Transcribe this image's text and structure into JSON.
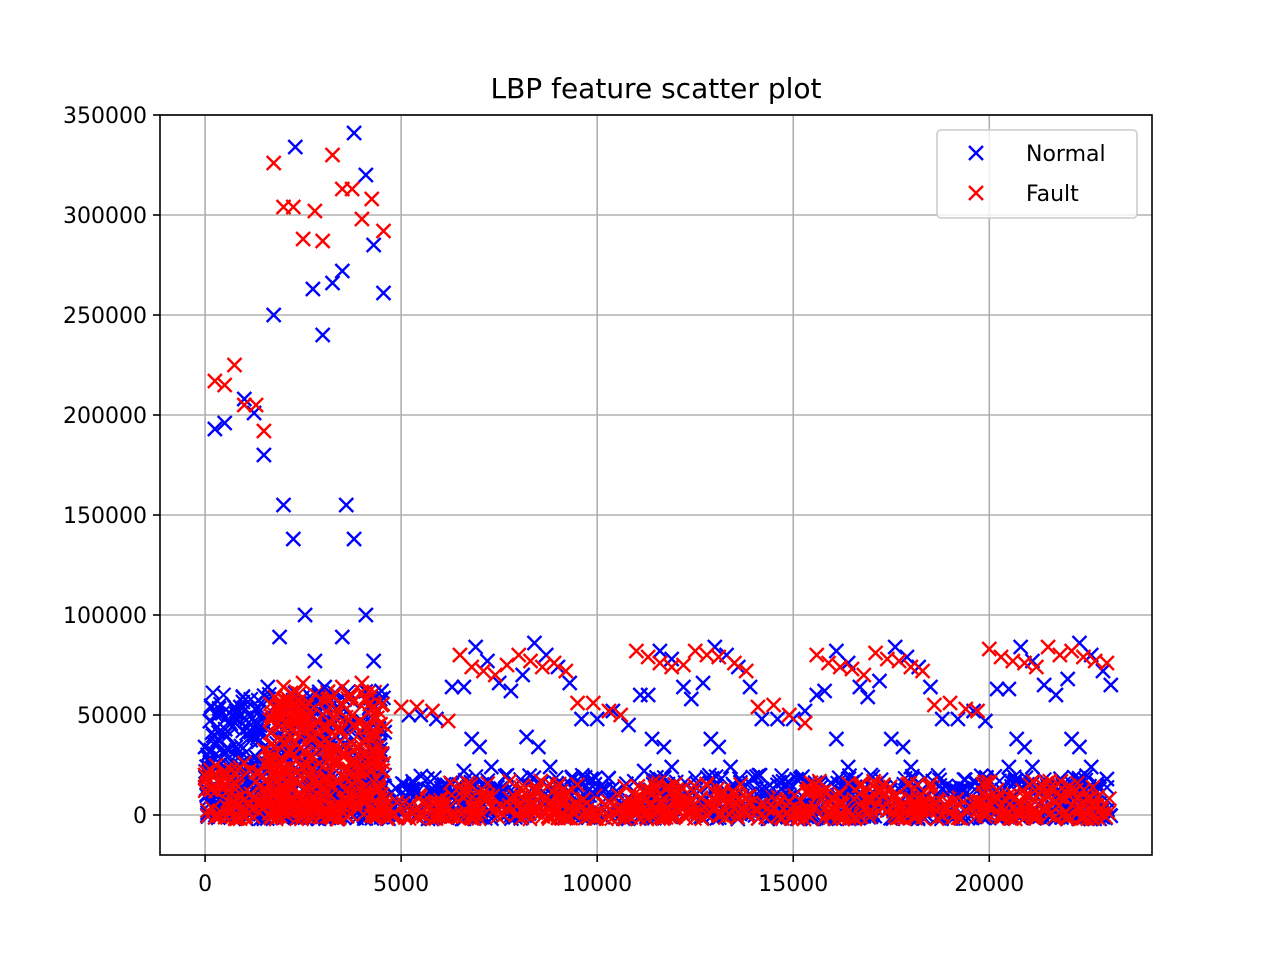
{
  "chart_data": {
    "type": "scatter",
    "title": "LBP feature scatter plot",
    "xlabel": "",
    "ylabel": "",
    "xlim": [
      -1150,
      24150
    ],
    "ylim": [
      -20000,
      350000
    ],
    "xticks": [
      0,
      5000,
      10000,
      15000,
      20000
    ],
    "xtick_labels": [
      "0",
      "5000",
      "10000",
      "15000",
      "20000"
    ],
    "yticks": [
      0,
      50000,
      100000,
      150000,
      200000,
      250000,
      300000,
      350000
    ],
    "ytick_labels": [
      "0",
      "50000",
      "100000",
      "150000",
      "200000",
      "250000",
      "300000",
      "350000"
    ],
    "grid": true,
    "legend_position": "top-right",
    "marker": "x",
    "series": [
      {
        "name": "Normal",
        "color": "#0000ff",
        "points": [
          [
            0,
            34000
          ],
          [
            250,
            193000
          ],
          [
            500,
            196000
          ],
          [
            750,
            54000
          ],
          [
            1000,
            208000
          ],
          [
            1250,
            201000
          ],
          [
            1500,
            180000
          ],
          [
            1750,
            250000
          ],
          [
            2000,
            155000
          ],
          [
            2250,
            138000
          ],
          [
            2300,
            334000
          ],
          [
            2550,
            100000
          ],
          [
            2750,
            263000
          ],
          [
            3000,
            240000
          ],
          [
            3250,
            266000
          ],
          [
            3500,
            272000
          ],
          [
            3600,
            155000
          ],
          [
            3800,
            341000
          ],
          [
            3800,
            138000
          ],
          [
            4100,
            320000
          ],
          [
            4300,
            285000
          ],
          [
            4550,
            261000
          ],
          [
            1900,
            89000
          ],
          [
            2800,
            77000
          ],
          [
            3500,
            89000
          ],
          [
            4100,
            100000
          ],
          [
            4300,
            77000
          ],
          [
            1600,
            64000
          ],
          [
            3050,
            64000
          ],
          [
            500,
            40000
          ],
          [
            1250,
            40000
          ],
          [
            4500,
            62000
          ],
          [
            300,
            36000
          ],
          [
            900,
            54000
          ],
          [
            5200,
            50000
          ],
          [
            5500,
            50000
          ],
          [
            5900,
            48000
          ],
          [
            6300,
            64000
          ],
          [
            6600,
            64000
          ],
          [
            6900,
            84000
          ],
          [
            7200,
            77000
          ],
          [
            7500,
            66000
          ],
          [
            7800,
            62000
          ],
          [
            8100,
            70000
          ],
          [
            8400,
            86000
          ],
          [
            8700,
            80000
          ],
          [
            9000,
            74000
          ],
          [
            9300,
            66000
          ],
          [
            9600,
            48000
          ],
          [
            10000,
            48000
          ],
          [
            10400,
            52000
          ],
          [
            10800,
            45000
          ],
          [
            11100,
            60000
          ],
          [
            11300,
            60000
          ],
          [
            11600,
            82000
          ],
          [
            11900,
            78000
          ],
          [
            12200,
            64000
          ],
          [
            12400,
            58000
          ],
          [
            12700,
            66000
          ],
          [
            13000,
            84000
          ],
          [
            13300,
            80000
          ],
          [
            13600,
            74000
          ],
          [
            13900,
            64000
          ],
          [
            14200,
            48000
          ],
          [
            14600,
            48000
          ],
          [
            15000,
            48000
          ],
          [
            15300,
            52000
          ],
          [
            15600,
            60000
          ],
          [
            15800,
            62000
          ],
          [
            16100,
            82000
          ],
          [
            16400,
            76000
          ],
          [
            16700,
            64000
          ],
          [
            16900,
            59000
          ],
          [
            17200,
            67000
          ],
          [
            17600,
            84000
          ],
          [
            17900,
            79000
          ],
          [
            18200,
            74000
          ],
          [
            18500,
            64000
          ],
          [
            18800,
            48000
          ],
          [
            19200,
            48000
          ],
          [
            19600,
            52000
          ],
          [
            19900,
            47000
          ],
          [
            20200,
            63000
          ],
          [
            20500,
            63000
          ],
          [
            20800,
            84000
          ],
          [
            21100,
            77000
          ],
          [
            21400,
            65000
          ],
          [
            21700,
            60000
          ],
          [
            22000,
            68000
          ],
          [
            22300,
            86000
          ],
          [
            22600,
            80000
          ],
          [
            22900,
            72000
          ],
          [
            23100,
            65000
          ],
          [
            6600,
            22000
          ],
          [
            6800,
            38000
          ],
          [
            7000,
            34000
          ],
          [
            7300,
            24000
          ],
          [
            8200,
            39000
          ],
          [
            8500,
            34000
          ],
          [
            8800,
            24000
          ],
          [
            11200,
            22000
          ],
          [
            11400,
            38000
          ],
          [
            11700,
            34000
          ],
          [
            11900,
            24000
          ],
          [
            12900,
            38000
          ],
          [
            13100,
            34000
          ],
          [
            13400,
            24000
          ],
          [
            16100,
            38000
          ],
          [
            16400,
            24000
          ],
          [
            17500,
            38000
          ],
          [
            17800,
            34000
          ],
          [
            18000,
            24000
          ],
          [
            20500,
            24000
          ],
          [
            20700,
            38000
          ],
          [
            20900,
            34000
          ],
          [
            21100,
            24000
          ],
          [
            22100,
            38000
          ],
          [
            22300,
            34000
          ],
          [
            22600,
            24000
          ],
          [
            23000,
            18000
          ],
          [
            5300,
            13000
          ],
          [
            5800,
            13000
          ],
          [
            9800,
            13000
          ],
          [
            10200,
            13000
          ],
          [
            14200,
            13000
          ],
          [
            14700,
            13000
          ],
          [
            18800,
            13000
          ],
          [
            19300,
            13000
          ]
        ]
      },
      {
        "name": "Fault",
        "color": "#ff0000",
        "points": [
          [
            250,
            217000
          ],
          [
            500,
            215000
          ],
          [
            750,
            225000
          ],
          [
            1000,
            205000
          ],
          [
            1300,
            205000
          ],
          [
            1500,
            192000
          ],
          [
            1750,
            326000
          ],
          [
            2000,
            304000
          ],
          [
            2250,
            304000
          ],
          [
            2500,
            288000
          ],
          [
            2800,
            302000
          ],
          [
            3000,
            287000
          ],
          [
            3250,
            330000
          ],
          [
            3500,
            313000
          ],
          [
            3750,
            313000
          ],
          [
            4000,
            298000
          ],
          [
            4250,
            308000
          ],
          [
            4550,
            292000
          ],
          [
            0,
            20000
          ],
          [
            500,
            22000
          ],
          [
            1000,
            26000
          ],
          [
            2000,
            64000
          ],
          [
            2500,
            66000
          ],
          [
            3000,
            50000
          ],
          [
            3500,
            64000
          ],
          [
            4000,
            66000
          ],
          [
            4500,
            55000
          ],
          [
            5000,
            54000
          ],
          [
            5400,
            54000
          ],
          [
            5800,
            52000
          ],
          [
            6200,
            47000
          ],
          [
            6500,
            80000
          ],
          [
            6800,
            74000
          ],
          [
            7100,
            72000
          ],
          [
            7400,
            70000
          ],
          [
            7700,
            75000
          ],
          [
            8000,
            80000
          ],
          [
            8300,
            77000
          ],
          [
            8600,
            74000
          ],
          [
            8900,
            76000
          ],
          [
            9200,
            72000
          ],
          [
            9500,
            56000
          ],
          [
            9900,
            56000
          ],
          [
            10300,
            52000
          ],
          [
            10600,
            50000
          ],
          [
            11000,
            82000
          ],
          [
            11300,
            79000
          ],
          [
            11600,
            76000
          ],
          [
            11900,
            74000
          ],
          [
            12200,
            75000
          ],
          [
            12500,
            82000
          ],
          [
            12800,
            80000
          ],
          [
            13100,
            79000
          ],
          [
            13500,
            76000
          ],
          [
            13800,
            72000
          ],
          [
            14100,
            54000
          ],
          [
            14500,
            55000
          ],
          [
            14900,
            50000
          ],
          [
            15300,
            46000
          ],
          [
            15600,
            80000
          ],
          [
            15900,
            76000
          ],
          [
            16200,
            74000
          ],
          [
            16500,
            73000
          ],
          [
            16800,
            70000
          ],
          [
            17100,
            81000
          ],
          [
            17400,
            78000
          ],
          [
            17700,
            77000
          ],
          [
            18000,
            74000
          ],
          [
            18300,
            72000
          ],
          [
            18600,
            55000
          ],
          [
            19000,
            56000
          ],
          [
            19400,
            53000
          ],
          [
            19700,
            52000
          ],
          [
            20000,
            83000
          ],
          [
            20300,
            79000
          ],
          [
            20600,
            77000
          ],
          [
            20900,
            76000
          ],
          [
            21200,
            74000
          ],
          [
            21500,
            84000
          ],
          [
            21800,
            80000
          ],
          [
            22100,
            82000
          ],
          [
            22400,
            79000
          ],
          [
            22700,
            77000
          ],
          [
            23000,
            76000
          ]
        ]
      }
    ],
    "dense_bands": [
      {
        "series": "Normal",
        "x_range": [
          0,
          4600
        ],
        "y_range": [
          -2000,
          62000
        ]
      },
      {
        "series": "Normal",
        "x_range": [
          4600,
          23100
        ],
        "y_range": [
          -2000,
          20000
        ]
      },
      {
        "series": "Fault",
        "x_range": [
          0,
          1500
        ],
        "y_range": [
          -2000,
          25000
        ]
      },
      {
        "series": "Fault",
        "x_range": [
          1500,
          4600
        ],
        "y_range": [
          -2000,
          62000
        ]
      },
      {
        "series": "Fault",
        "x_range": [
          4600,
          6000
        ],
        "y_range": [
          -2000,
          10000
        ]
      },
      {
        "series": "Fault",
        "x_range": [
          6000,
          9500
        ],
        "y_range": [
          -2000,
          17000
        ]
      },
      {
        "series": "Fault",
        "x_range": [
          9500,
          10600
        ],
        "y_range": [
          -2000,
          10000
        ]
      },
      {
        "series": "Fault",
        "x_range": [
          10600,
          14000
        ],
        "y_range": [
          -2000,
          17000
        ]
      },
      {
        "series": "Fault",
        "x_range": [
          14000,
          15200
        ],
        "y_range": [
          -2000,
          10000
        ]
      },
      {
        "series": "Fault",
        "x_range": [
          15200,
          18600
        ],
        "y_range": [
          -2000,
          17000
        ]
      },
      {
        "series": "Fault",
        "x_range": [
          18600,
          19800
        ],
        "y_range": [
          -2000,
          10000
        ]
      },
      {
        "series": "Fault",
        "x_range": [
          19800,
          23100
        ],
        "y_range": [
          -2000,
          17000
        ]
      }
    ]
  }
}
